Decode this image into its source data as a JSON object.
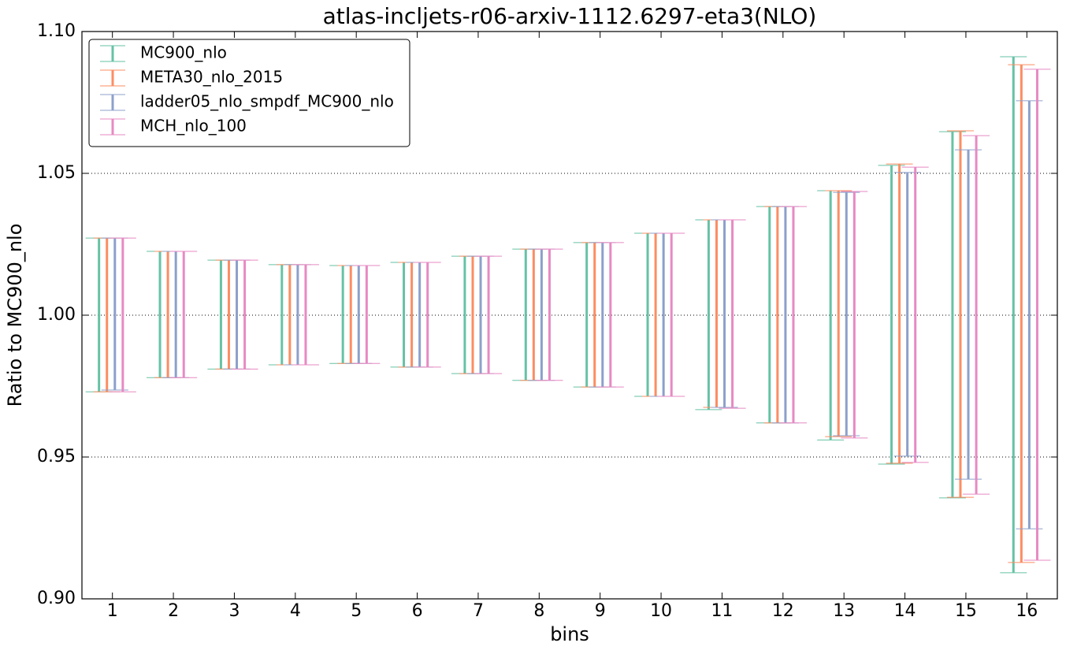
{
  "chart_data": {
    "type": "errorbar",
    "title": "atlas-incljets-r06-arxiv-1112.6297-eta3(NLO)",
    "xlabel": "bins",
    "ylabel": "Ratio to MC900_nlo",
    "xlim": [
      0.5,
      16.5
    ],
    "xticks": [
      1,
      2,
      3,
      4,
      5,
      6,
      7,
      8,
      9,
      10,
      11,
      12,
      13,
      14,
      15,
      16
    ],
    "ylim": [
      0.9,
      1.1
    ],
    "yticks": [
      {
        "value": 0.9,
        "label": "0.90"
      },
      {
        "value": 0.95,
        "label": "0.95"
      },
      {
        "value": 1.0,
        "label": "1.00"
      },
      {
        "value": 1.05,
        "label": "1.05"
      },
      {
        "value": 1.1,
        "label": "1.10"
      }
    ],
    "grid": true,
    "legend_position": "upper left",
    "x": [
      1,
      2,
      3,
      4,
      5,
      6,
      7,
      8,
      9,
      10,
      11,
      12,
      13,
      14,
      15,
      16
    ],
    "series": [
      {
        "name": "MC900_nlo",
        "color": "#66c2a5",
        "upper": [
          1.0272,
          1.0225,
          1.0194,
          1.0178,
          1.0175,
          1.0186,
          1.0208,
          1.0233,
          1.0256,
          1.0289,
          1.0336,
          1.0383,
          1.0439,
          1.0528,
          1.0647,
          1.0911
        ],
        "lower": [
          0.973,
          0.978,
          0.981,
          0.9825,
          0.983,
          0.9817,
          0.9794,
          0.977,
          0.9747,
          0.9714,
          0.9667,
          0.962,
          0.956,
          0.9475,
          0.9356,
          0.9092
        ]
      },
      {
        "name": "META30_nlo_2015",
        "color": "#fc8d62",
        "upper": [
          1.0272,
          1.0225,
          1.0194,
          1.0178,
          1.0175,
          1.0186,
          1.0208,
          1.0233,
          1.0256,
          1.0289,
          1.0336,
          1.0383,
          1.0439,
          1.0533,
          1.065,
          1.0883
        ],
        "lower": [
          0.973,
          0.978,
          0.981,
          0.9825,
          0.983,
          0.9817,
          0.9794,
          0.977,
          0.9747,
          0.9714,
          0.9675,
          0.962,
          0.9572,
          0.9478,
          0.9358,
          0.9128
        ]
      },
      {
        "name": "ladder05_nlo_smpdf_MC900_nlo",
        "color": "#8da0cb",
        "upper": [
          1.0272,
          1.0225,
          1.0194,
          1.0178,
          1.0175,
          1.0186,
          1.0208,
          1.0233,
          1.0256,
          1.0289,
          1.0336,
          1.0383,
          1.0433,
          1.0503,
          1.0583,
          1.0756
        ],
        "lower": [
          0.9736,
          0.978,
          0.981,
          0.9825,
          0.983,
          0.9817,
          0.9794,
          0.977,
          0.9747,
          0.9714,
          0.9675,
          0.962,
          0.9575,
          0.9503,
          0.9422,
          0.9247
        ]
      },
      {
        "name": "MCH_nlo_100",
        "color": "#e78ac3",
        "upper": [
          1.0272,
          1.0225,
          1.0194,
          1.0178,
          1.0175,
          1.0186,
          1.0208,
          1.0233,
          1.0256,
          1.0289,
          1.0336,
          1.0383,
          1.0436,
          1.0522,
          1.0633,
          1.0867
        ],
        "lower": [
          0.973,
          0.978,
          0.981,
          0.9825,
          0.983,
          0.9817,
          0.9794,
          0.977,
          0.9747,
          0.9714,
          0.9672,
          0.962,
          0.9567,
          0.9481,
          0.9369,
          0.9136
        ]
      }
    ]
  }
}
